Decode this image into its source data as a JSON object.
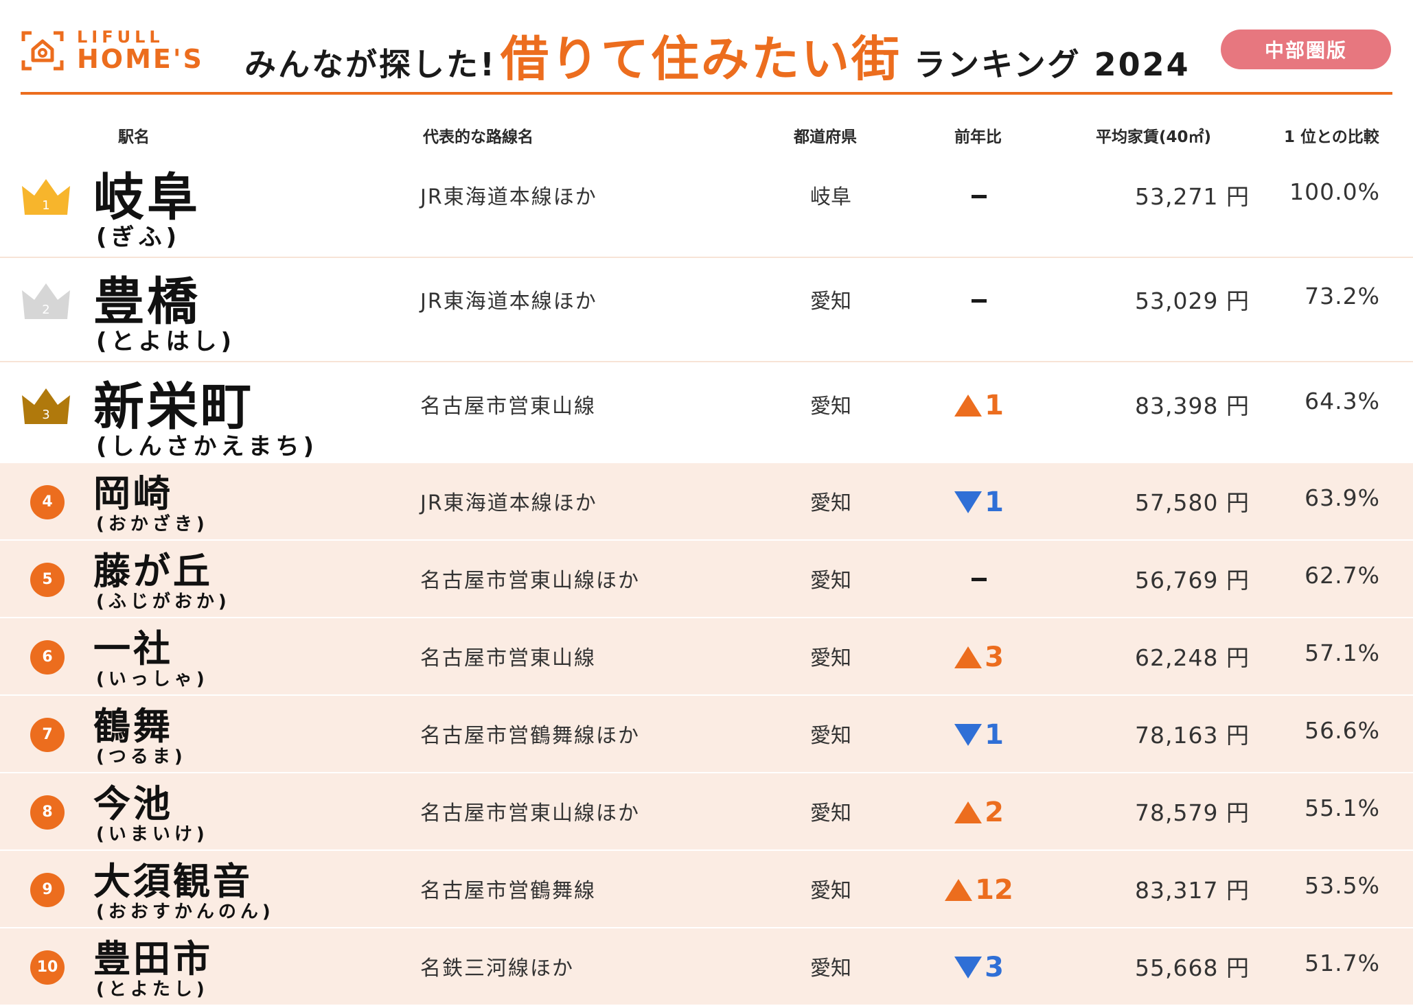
{
  "header": {
    "logo_top": "LIFULL",
    "logo_bottom": "HOME'S",
    "title_pre": "みんなが探した!",
    "title_main": "借りて住みたい街",
    "title_post": "ランキング 2024",
    "region_label": "中部圏版"
  },
  "columns": {
    "station": "駅名",
    "line": "代表的な路線名",
    "prefecture": "都道府県",
    "change": "前年比",
    "rent": "平均家賃(40㎡)",
    "ratio": "1 位との比較"
  },
  "colors": {
    "accent": "#ec6d1e",
    "badge": "#e7777f",
    "gold": "#f7b52c",
    "silver": "#d6d6d6",
    "bronze": "#b0790c",
    "down": "#2f6fd6",
    "row_tint": "#fbece3"
  },
  "rows": [
    {
      "rank": "1",
      "medal": "gold-crown-icon",
      "station": "岐阜",
      "reading": "(ぎふ)",
      "line": "JR東海道本線ほか",
      "prefecture": "岐阜",
      "change_dir": "none",
      "change": "",
      "rent": "53,271 円",
      "ratio": "100.0%"
    },
    {
      "rank": "2",
      "medal": "silver-crown-icon",
      "station": "豊橋",
      "reading": "(とよはし)",
      "line": "JR東海道本線ほか",
      "prefecture": "愛知",
      "change_dir": "none",
      "change": "",
      "rent": "53,029 円",
      "ratio": "73.2%"
    },
    {
      "rank": "3",
      "medal": "bronze-crown-icon",
      "station": "新栄町",
      "reading": "(しんさかえまち)",
      "line": "名古屋市営東山線",
      "prefecture": "愛知",
      "change_dir": "up",
      "change": "1",
      "rent": "83,398 円",
      "ratio": "64.3%"
    },
    {
      "rank": "4",
      "medal": "rank-circle",
      "station": "岡崎",
      "reading": "(おかざき)",
      "line": "JR東海道本線ほか",
      "prefecture": "愛知",
      "change_dir": "down",
      "change": "1",
      "rent": "57,580 円",
      "ratio": "63.9%"
    },
    {
      "rank": "5",
      "medal": "rank-circle",
      "station": "藤が丘",
      "reading": "(ふじがおか)",
      "line": "名古屋市営東山線ほか",
      "prefecture": "愛知",
      "change_dir": "none",
      "change": "",
      "rent": "56,769 円",
      "ratio": "62.7%"
    },
    {
      "rank": "6",
      "medal": "rank-circle",
      "station": "一社",
      "reading": "(いっしゃ)",
      "line": "名古屋市営東山線",
      "prefecture": "愛知",
      "change_dir": "up",
      "change": "3",
      "rent": "62,248 円",
      "ratio": "57.1%"
    },
    {
      "rank": "7",
      "medal": "rank-circle",
      "station": "鶴舞",
      "reading": "(つるま)",
      "line": "名古屋市営鶴舞線ほか",
      "prefecture": "愛知",
      "change_dir": "down",
      "change": "1",
      "rent": "78,163 円",
      "ratio": "56.6%"
    },
    {
      "rank": "8",
      "medal": "rank-circle",
      "station": "今池",
      "reading": "(いまいけ)",
      "line": "名古屋市営東山線ほか",
      "prefecture": "愛知",
      "change_dir": "up",
      "change": "2",
      "rent": "78,579 円",
      "ratio": "55.1%"
    },
    {
      "rank": "9",
      "medal": "rank-circle",
      "station": "大須観音",
      "reading": "(おおすかんのん)",
      "line": "名古屋市営鶴舞線",
      "prefecture": "愛知",
      "change_dir": "up",
      "change": "12",
      "rent": "83,317 円",
      "ratio": "53.5%"
    },
    {
      "rank": "10",
      "medal": "rank-circle",
      "station": "豊田市",
      "reading": "(とよたし)",
      "line": "名鉄三河線ほか",
      "prefecture": "愛知",
      "change_dir": "down",
      "change": "3",
      "rent": "55,668 円",
      "ratio": "51.7%"
    }
  ]
}
